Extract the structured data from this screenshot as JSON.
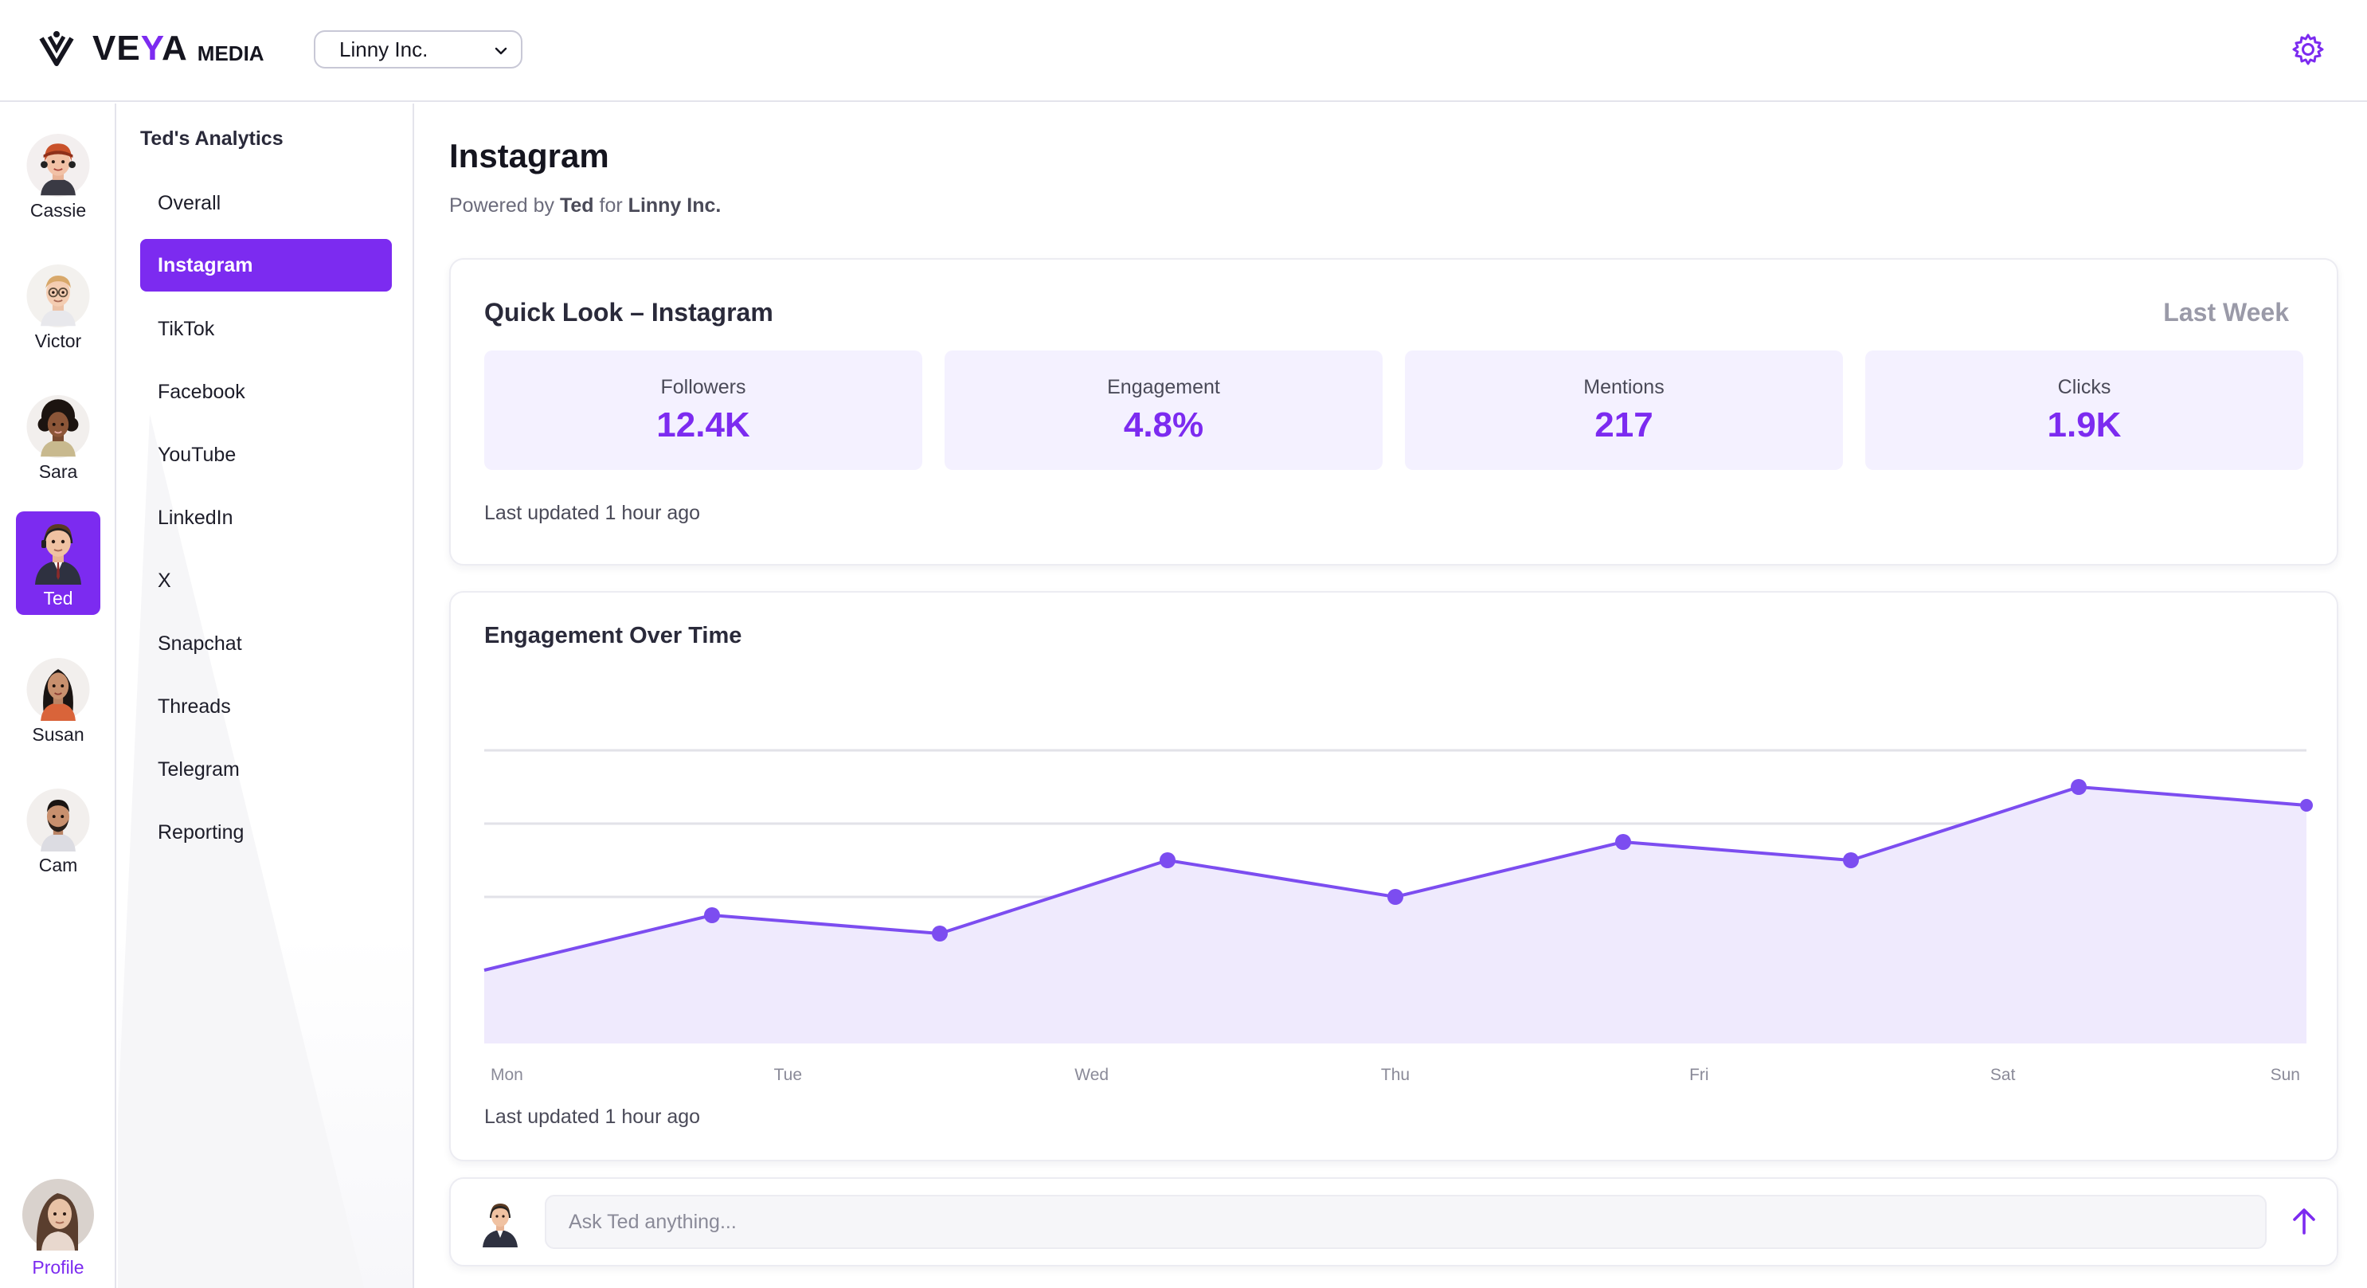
{
  "brand": {
    "logo_text_a": "VE",
    "logo_text_y": "Y",
    "logo_text_b": "A",
    "logo_sub": "MEDIA",
    "accent": "#7c2bf0"
  },
  "header": {
    "org_selected": "Linny Inc.",
    "settings_icon": "gear-icon"
  },
  "agents": [
    {
      "name": "Cassie",
      "active": false
    },
    {
      "name": "Victor",
      "active": false
    },
    {
      "name": "Sara",
      "active": false
    },
    {
      "name": "Ted",
      "active": true
    },
    {
      "name": "Susan",
      "active": false
    },
    {
      "name": "Cam",
      "active": false
    }
  ],
  "profile": {
    "label": "Profile"
  },
  "nav": {
    "title": "Ted's Analytics",
    "items": [
      "Overall",
      "Instagram",
      "TikTok",
      "Facebook",
      "YouTube",
      "LinkedIn",
      "X",
      "Snapchat",
      "Threads",
      "Telegram",
      "Reporting"
    ],
    "active": "Instagram"
  },
  "page": {
    "title": "Instagram",
    "sub_prefix": "Powered by",
    "sub_agent": "Ted",
    "sub_mid": "for",
    "sub_org": "Linny Inc."
  },
  "quick": {
    "title": "Quick Look – Instagram",
    "range": "Last Week",
    "kpis": [
      {
        "label": "Followers",
        "value": "12.4K"
      },
      {
        "label": "Engagement",
        "value": "4.8%"
      },
      {
        "label": "Mentions",
        "value": "217"
      },
      {
        "label": "Clicks",
        "value": "1.9K"
      }
    ],
    "updated": "Last updated 1 hour ago"
  },
  "engagement": {
    "title": "Engagement Over Time",
    "updated": "Last updated 1 hour ago"
  },
  "chart_data": {
    "type": "area",
    "title": "Engagement Over Time",
    "x_tick_labels": [
      "Mon",
      "Tue",
      "Wed",
      "Thu",
      "Fri",
      "Sat",
      "Sun"
    ],
    "x": [
      0,
      1,
      1.5,
      2,
      2.5,
      3,
      3.5,
      4
    ],
    "points": [
      {
        "x": 0.0,
        "y": 1.0
      },
      {
        "x": 0.5,
        "y": 1.75
      },
      {
        "x": 1.0,
        "y": 1.5
      },
      {
        "x": 1.5,
        "y": 2.5
      },
      {
        "x": 2.0,
        "y": 2.0
      },
      {
        "x": 2.5,
        "y": 2.75
      },
      {
        "x": 3.0,
        "y": 2.5
      },
      {
        "x": 3.5,
        "y": 3.5
      },
      {
        "x": 4.0,
        "y": 3.25
      }
    ],
    "ylim": [
      0,
      4
    ],
    "grid": true,
    "color": "#7c4df0",
    "fill": "#efeafd"
  },
  "ask": {
    "placeholder": "Ask Ted anything...",
    "send_icon": "arrow-up-icon"
  }
}
